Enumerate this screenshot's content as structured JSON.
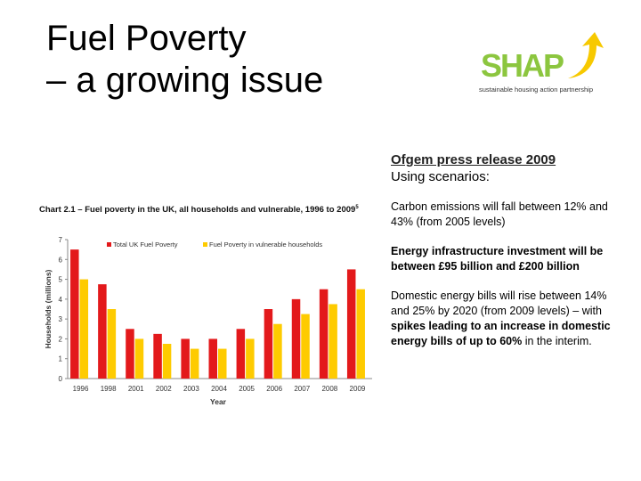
{
  "title": {
    "line1": "Fuel Poverty",
    "line2": "– a growing issue"
  },
  "logo": {
    "text": "SHAP",
    "tagline": "sustainable housing action partnership",
    "text_color": "#8cc63f",
    "arrow_color": "#f7c900"
  },
  "right": {
    "press": "Ofgem press release 2009",
    "using": "Using scenarios:",
    "p1": "Carbon emissions will fall between 12% and 43% (from 2005 levels)",
    "p2": "Energy infrastructure investment will be between £95 billion and £200 billion",
    "p3a": "Domestic energy bills will rise between 14% and 25% by 2020 (from 2009 levels) – with ",
    "p3b": "spikes leading to an increase in domestic energy bills of up to 60%",
    "p3c": " in the interim."
  },
  "chart_data": {
    "type": "bar",
    "title": "Chart 2.1 – Fuel poverty in the UK, all households and vulnerable, 1996 to 2009",
    "title_sup": "5",
    "xlabel": "Year",
    "ylabel": "Households (millions)",
    "ylim": [
      0,
      7
    ],
    "yticks": [
      0,
      1,
      2,
      3,
      4,
      5,
      6,
      7
    ],
    "grid": false,
    "legend_position": "top",
    "categories": [
      "1996",
      "1998",
      "2001",
      "2002",
      "2003",
      "2004",
      "2005",
      "2006",
      "2007",
      "2008",
      "2009"
    ],
    "series": [
      {
        "name": "Total UK Fuel Poverty",
        "color": "#e3191b",
        "values": [
          6.5,
          4.75,
          2.5,
          2.25,
          2.0,
          2.0,
          2.5,
          3.5,
          4.0,
          4.5,
          5.5
        ]
      },
      {
        "name": "Fuel Poverty in vulnerable households",
        "color": "#fecb00",
        "values": [
          5.0,
          3.5,
          2.0,
          1.75,
          1.5,
          1.5,
          2.0,
          2.75,
          3.25,
          3.75,
          4.5
        ]
      }
    ]
  }
}
